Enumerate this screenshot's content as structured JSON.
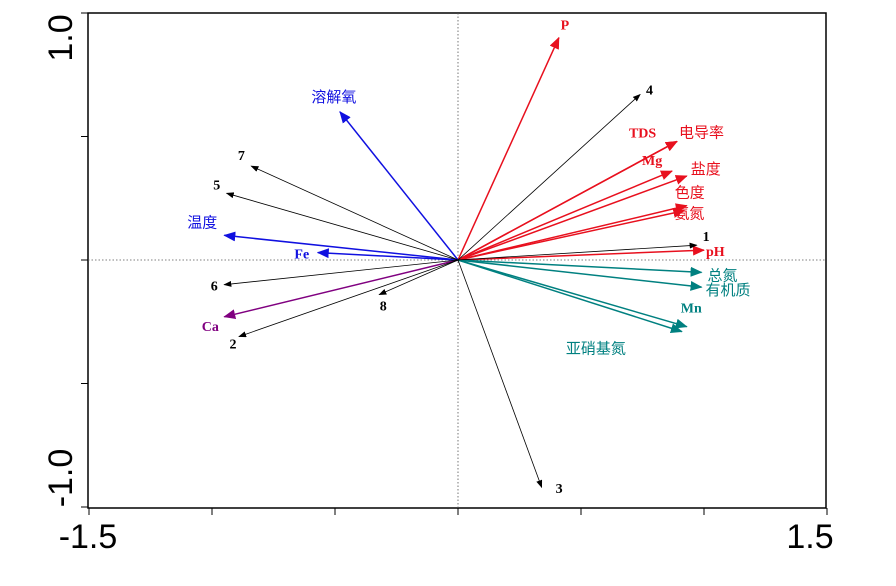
{
  "chart_data": {
    "type": "biplot",
    "xlim": [
      -1.5,
      1.5
    ],
    "ylim": [
      -1.0,
      1.0
    ],
    "tick_labels": {
      "x_min": "-1.5",
      "x_max": "1.5",
      "y_max": "1.0",
      "y_min": "-1.0"
    },
    "grid": false,
    "colors": {
      "red": "#e8101e",
      "blue": "#1010e0",
      "teal": "#008080",
      "purple": "#800080",
      "black": "#000000"
    },
    "groups": [
      {
        "color": "red",
        "vectors": [
          {
            "label": "P",
            "x": 0.41,
            "y": 0.9
          },
          {
            "label": "TDS",
            "x": 0.89,
            "y": 0.48
          },
          {
            "label": "电导率",
            "x": 0.89,
            "y": 0.48
          },
          {
            "label": "Mg",
            "x": 0.87,
            "y": 0.36
          },
          {
            "label": "盐度",
            "x": 0.93,
            "y": 0.34
          },
          {
            "label": "色度",
            "x": 0.93,
            "y": 0.22
          },
          {
            "label": "氨氮",
            "x": 0.92,
            "y": 0.2
          },
          {
            "label": "pH",
            "x": 1.0,
            "y": 0.04
          }
        ]
      },
      {
        "color": "blue",
        "vectors": [
          {
            "label": "溶解氧",
            "x": -0.48,
            "y": 0.6
          },
          {
            "label": "温度",
            "x": -0.95,
            "y": 0.1
          },
          {
            "label": "Fe",
            "x": -0.57,
            "y": 0.03
          }
        ]
      },
      {
        "color": "purple",
        "vectors": [
          {
            "label": "Ca",
            "x": -0.95,
            "y": -0.23
          }
        ]
      },
      {
        "color": "teal",
        "vectors": [
          {
            "label": "总氮",
            "x": 0.99,
            "y": -0.05
          },
          {
            "label": "有机质",
            "x": 0.99,
            "y": -0.11
          },
          {
            "label": "Mn",
            "x": 0.93,
            "y": -0.27
          },
          {
            "label": "亚硝基氮",
            "x": 0.91,
            "y": -0.29
          }
        ]
      },
      {
        "color": "black",
        "vectors": [
          {
            "label": "4",
            "x": 0.74,
            "y": 0.67
          },
          {
            "label": "7",
            "x": -0.84,
            "y": 0.38
          },
          {
            "label": "5",
            "x": -0.94,
            "y": 0.27
          },
          {
            "label": "1",
            "x": 0.97,
            "y": 0.06
          },
          {
            "label": "6",
            "x": -0.95,
            "y": -0.1
          },
          {
            "label": "8",
            "x": -0.32,
            "y": -0.14
          },
          {
            "label": "2",
            "x": -0.89,
            "y": -0.31
          },
          {
            "label": "3",
            "x": 0.34,
            "y": -0.92
          }
        ]
      }
    ]
  }
}
